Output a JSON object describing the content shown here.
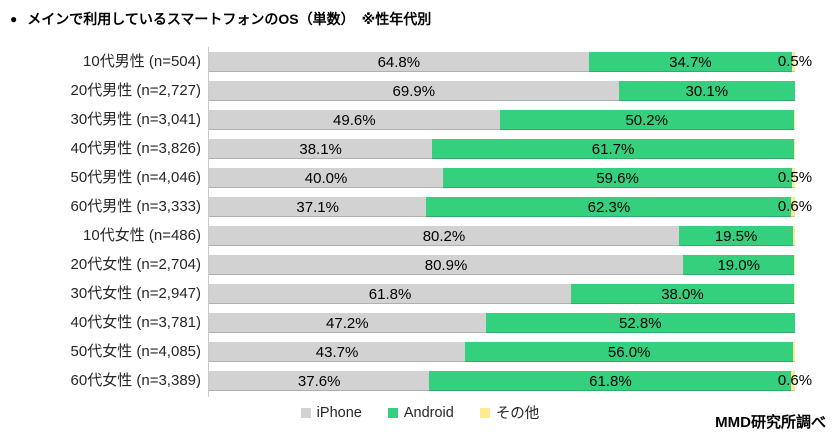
{
  "title": {
    "bullet": "●",
    "text": "メインで利用しているスマートフォンのOS（単数）　※性年代別"
  },
  "footer": "MMD研究所調べ",
  "colors": {
    "iphone": "#D2D2D2",
    "android": "#35D07E",
    "other": "#FFE991",
    "axis_line": "#C9C9C9",
    "label_text": "#262626"
  },
  "legend": {
    "items": [
      {
        "label": "iPhone",
        "color": "#D2D2D2"
      },
      {
        "label": "Android",
        "color": "#35D07E"
      },
      {
        "label": "その他",
        "color": "#FFE991"
      }
    ]
  },
  "chart_data": {
    "type": "bar",
    "variant": "horizontal-stacked-100",
    "unit": "%",
    "title": "メインで利用しているスマートフォンのOS（単数）　※性年代別",
    "series_names": [
      "iPhone",
      "Android",
      "その他"
    ],
    "xlim": [
      0,
      100
    ],
    "grid": false,
    "legend_position": "bottom",
    "rows": [
      {
        "label": "10代男性 (n=504)",
        "iphone": 64.8,
        "android": 34.7,
        "other": 0.5,
        "other_label": "0.5%"
      },
      {
        "label": "20代男性 (n=2,727)",
        "iphone": 69.9,
        "android": 30.1,
        "other": 0,
        "other_label": ""
      },
      {
        "label": "30代男性 (n=3,041)",
        "iphone": 49.6,
        "android": 50.2,
        "other": 0.2,
        "other_label": ""
      },
      {
        "label": "40代男性 (n=3,826)",
        "iphone": 38.1,
        "android": 61.7,
        "other": 0.2,
        "other_label": ""
      },
      {
        "label": "50代男性 (n=4,046)",
        "iphone": 40.0,
        "android": 59.6,
        "other": 0.5,
        "other_label": "0.5%"
      },
      {
        "label": "60代男性 (n=3,333)",
        "iphone": 37.1,
        "android": 62.3,
        "other": 0.6,
        "other_label": "0.6%"
      },
      {
        "label": "10代女性 (n=486)",
        "iphone": 80.2,
        "android": 19.5,
        "other": 0.3,
        "other_label": ""
      },
      {
        "label": "20代女性 (n=2,704)",
        "iphone": 80.9,
        "android": 19.0,
        "other": 0.1,
        "other_label": ""
      },
      {
        "label": "30代女性 (n=2,947)",
        "iphone": 61.8,
        "android": 38.0,
        "other": 0.2,
        "other_label": ""
      },
      {
        "label": "40代女性 (n=3,781)",
        "iphone": 47.2,
        "android": 52.8,
        "other": 0,
        "other_label": ""
      },
      {
        "label": "50代女性 (n=4,085)",
        "iphone": 43.7,
        "android": 56.0,
        "other": 0.3,
        "other_label": ""
      },
      {
        "label": "60代女性 (n=3,389)",
        "iphone": 37.6,
        "android": 61.8,
        "other": 0.6,
        "other_label": "0.6%"
      }
    ]
  }
}
